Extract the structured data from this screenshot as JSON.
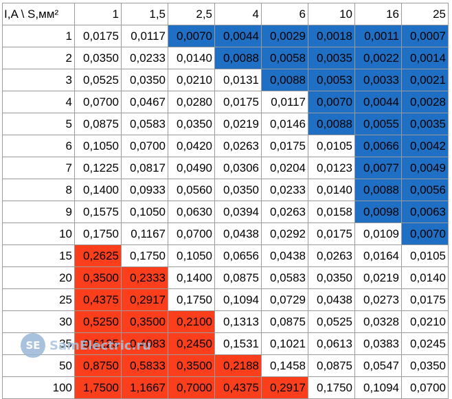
{
  "table": {
    "corner": "I,A \\ S,мм²",
    "columns": [
      "1",
      "1,5",
      "2,5",
      "4",
      "6",
      "10",
      "16",
      "25"
    ],
    "rows": [
      {
        "label": "1",
        "cells": [
          {
            "v": "0,0175",
            "c": ""
          },
          {
            "v": "0,0117",
            "c": ""
          },
          {
            "v": "0,0070",
            "c": "blue"
          },
          {
            "v": "0,0044",
            "c": "blue"
          },
          {
            "v": "0,0029",
            "c": "blue"
          },
          {
            "v": "0,0018",
            "c": "blue"
          },
          {
            "v": "0,0011",
            "c": "blue"
          },
          {
            "v": "0,0007",
            "c": "blue"
          }
        ]
      },
      {
        "label": "2",
        "cells": [
          {
            "v": "0,0350",
            "c": ""
          },
          {
            "v": "0,0233",
            "c": ""
          },
          {
            "v": "0,0140",
            "c": ""
          },
          {
            "v": "0,0088",
            "c": "blue"
          },
          {
            "v": "0,0058",
            "c": "blue"
          },
          {
            "v": "0,0035",
            "c": "blue"
          },
          {
            "v": "0,0022",
            "c": "blue"
          },
          {
            "v": "0,0014",
            "c": "blue"
          }
        ]
      },
      {
        "label": "3",
        "cells": [
          {
            "v": "0,0525",
            "c": ""
          },
          {
            "v": "0,0350",
            "c": ""
          },
          {
            "v": "0,0210",
            "c": ""
          },
          {
            "v": "0,0131",
            "c": ""
          },
          {
            "v": "0,0088",
            "c": "blue"
          },
          {
            "v": "0,0053",
            "c": "blue"
          },
          {
            "v": "0,0033",
            "c": "blue"
          },
          {
            "v": "0,0021",
            "c": "blue"
          }
        ]
      },
      {
        "label": "4",
        "cells": [
          {
            "v": "0,0700",
            "c": ""
          },
          {
            "v": "0,0467",
            "c": ""
          },
          {
            "v": "0,0280",
            "c": ""
          },
          {
            "v": "0,0175",
            "c": ""
          },
          {
            "v": "0,0117",
            "c": ""
          },
          {
            "v": "0,0070",
            "c": "blue"
          },
          {
            "v": "0,0044",
            "c": "blue"
          },
          {
            "v": "0,0028",
            "c": "blue"
          }
        ]
      },
      {
        "label": "5",
        "cells": [
          {
            "v": "0,0875",
            "c": ""
          },
          {
            "v": "0,0583",
            "c": ""
          },
          {
            "v": "0,0350",
            "c": ""
          },
          {
            "v": "0,0219",
            "c": ""
          },
          {
            "v": "0,0146",
            "c": ""
          },
          {
            "v": "0,0088",
            "c": "blue"
          },
          {
            "v": "0,0055",
            "c": "blue"
          },
          {
            "v": "0,0035",
            "c": "blue"
          }
        ]
      },
      {
        "label": "6",
        "cells": [
          {
            "v": "0,1050",
            "c": ""
          },
          {
            "v": "0,0700",
            "c": ""
          },
          {
            "v": "0,0420",
            "c": ""
          },
          {
            "v": "0,0263",
            "c": ""
          },
          {
            "v": "0,0175",
            "c": ""
          },
          {
            "v": "0,0105",
            "c": ""
          },
          {
            "v": "0,0066",
            "c": "blue"
          },
          {
            "v": "0,0042",
            "c": "blue"
          }
        ]
      },
      {
        "label": "7",
        "cells": [
          {
            "v": "0,1225",
            "c": ""
          },
          {
            "v": "0,0817",
            "c": ""
          },
          {
            "v": "0,0490",
            "c": ""
          },
          {
            "v": "0,0306",
            "c": ""
          },
          {
            "v": "0,0204",
            "c": ""
          },
          {
            "v": "0,0123",
            "c": ""
          },
          {
            "v": "0,0077",
            "c": "blue"
          },
          {
            "v": "0,0049",
            "c": "blue"
          }
        ]
      },
      {
        "label": "8",
        "cells": [
          {
            "v": "0,1400",
            "c": ""
          },
          {
            "v": "0,0933",
            "c": ""
          },
          {
            "v": "0,0560",
            "c": ""
          },
          {
            "v": "0,0350",
            "c": ""
          },
          {
            "v": "0,0233",
            "c": ""
          },
          {
            "v": "0,0140",
            "c": ""
          },
          {
            "v": "0,0088",
            "c": "blue"
          },
          {
            "v": "0,0056",
            "c": "blue"
          }
        ]
      },
      {
        "label": "9",
        "cells": [
          {
            "v": "0,1575",
            "c": ""
          },
          {
            "v": "0,1050",
            "c": ""
          },
          {
            "v": "0,0630",
            "c": ""
          },
          {
            "v": "0,0394",
            "c": ""
          },
          {
            "v": "0,0263",
            "c": ""
          },
          {
            "v": "0,0158",
            "c": ""
          },
          {
            "v": "0,0098",
            "c": "blue"
          },
          {
            "v": "0,0063",
            "c": "blue"
          }
        ]
      },
      {
        "label": "10",
        "cells": [
          {
            "v": "0,1750",
            "c": ""
          },
          {
            "v": "0,1167",
            "c": ""
          },
          {
            "v": "0,0700",
            "c": ""
          },
          {
            "v": "0,0438",
            "c": ""
          },
          {
            "v": "0,0292",
            "c": ""
          },
          {
            "v": "0,0175",
            "c": ""
          },
          {
            "v": "0,0109",
            "c": ""
          },
          {
            "v": "0,0070",
            "c": "blue"
          }
        ]
      },
      {
        "label": "15",
        "cells": [
          {
            "v": "0,2625",
            "c": "red"
          },
          {
            "v": "0,1750",
            "c": ""
          },
          {
            "v": "0,1050",
            "c": ""
          },
          {
            "v": "0,0656",
            "c": ""
          },
          {
            "v": "0,0438",
            "c": ""
          },
          {
            "v": "0,0263",
            "c": ""
          },
          {
            "v": "0,0164",
            "c": ""
          },
          {
            "v": "0,0105",
            "c": ""
          }
        ]
      },
      {
        "label": "20",
        "cells": [
          {
            "v": "0,3500",
            "c": "red"
          },
          {
            "v": "0,2333",
            "c": "red"
          },
          {
            "v": "0,1400",
            "c": ""
          },
          {
            "v": "0,0875",
            "c": ""
          },
          {
            "v": "0,0583",
            "c": ""
          },
          {
            "v": "0,0350",
            "c": ""
          },
          {
            "v": "0,0219",
            "c": ""
          },
          {
            "v": "0,0140",
            "c": ""
          }
        ]
      },
      {
        "label": "25",
        "cells": [
          {
            "v": "0,4375",
            "c": "red"
          },
          {
            "v": "0,2917",
            "c": "red"
          },
          {
            "v": "0,1750",
            "c": ""
          },
          {
            "v": "0,1094",
            "c": ""
          },
          {
            "v": "0,0729",
            "c": ""
          },
          {
            "v": "0,0438",
            "c": ""
          },
          {
            "v": "0,0273",
            "c": ""
          },
          {
            "v": "0,0175",
            "c": ""
          }
        ]
      },
      {
        "label": "30",
        "cells": [
          {
            "v": "0,5250",
            "c": "red"
          },
          {
            "v": "0,3500",
            "c": "red"
          },
          {
            "v": "0,2100",
            "c": "red"
          },
          {
            "v": "0,1313",
            "c": ""
          },
          {
            "v": "0,0875",
            "c": ""
          },
          {
            "v": "0,0525",
            "c": ""
          },
          {
            "v": "0,0328",
            "c": ""
          },
          {
            "v": "0,0210",
            "c": ""
          }
        ]
      },
      {
        "label": "35",
        "cells": [
          {
            "v": "0,6125",
            "c": "red"
          },
          {
            "v": "0,4083",
            "c": "red"
          },
          {
            "v": "0,2450",
            "c": "red"
          },
          {
            "v": "0,1531",
            "c": ""
          },
          {
            "v": "0,1021",
            "c": ""
          },
          {
            "v": "0,0613",
            "c": ""
          },
          {
            "v": "0,0383",
            "c": ""
          },
          {
            "v": "0,0245",
            "c": ""
          }
        ]
      },
      {
        "label": "50",
        "cells": [
          {
            "v": "0,8750",
            "c": "red"
          },
          {
            "v": "0,5833",
            "c": "red"
          },
          {
            "v": "0,3500",
            "c": "red"
          },
          {
            "v": "0,2188",
            "c": "red"
          },
          {
            "v": "0,1458",
            "c": ""
          },
          {
            "v": "0,0875",
            "c": ""
          },
          {
            "v": "0,0547",
            "c": ""
          },
          {
            "v": "0,0350",
            "c": ""
          }
        ]
      },
      {
        "label": "100",
        "cells": [
          {
            "v": "1,7500",
            "c": "red"
          },
          {
            "v": "1,1667",
            "c": "red"
          },
          {
            "v": "0,7000",
            "c": "red"
          },
          {
            "v": "0,4375",
            "c": "red"
          },
          {
            "v": "0,2917",
            "c": "red"
          },
          {
            "v": "0,1750",
            "c": ""
          },
          {
            "v": "0,1094",
            "c": ""
          },
          {
            "v": "0,0700",
            "c": ""
          }
        ]
      }
    ]
  },
  "colors": {
    "blue": "#1f6fc5",
    "red": "#fb3f1c"
  },
  "watermark": {
    "logo": "SE",
    "text": "SamElectric.ru"
  }
}
